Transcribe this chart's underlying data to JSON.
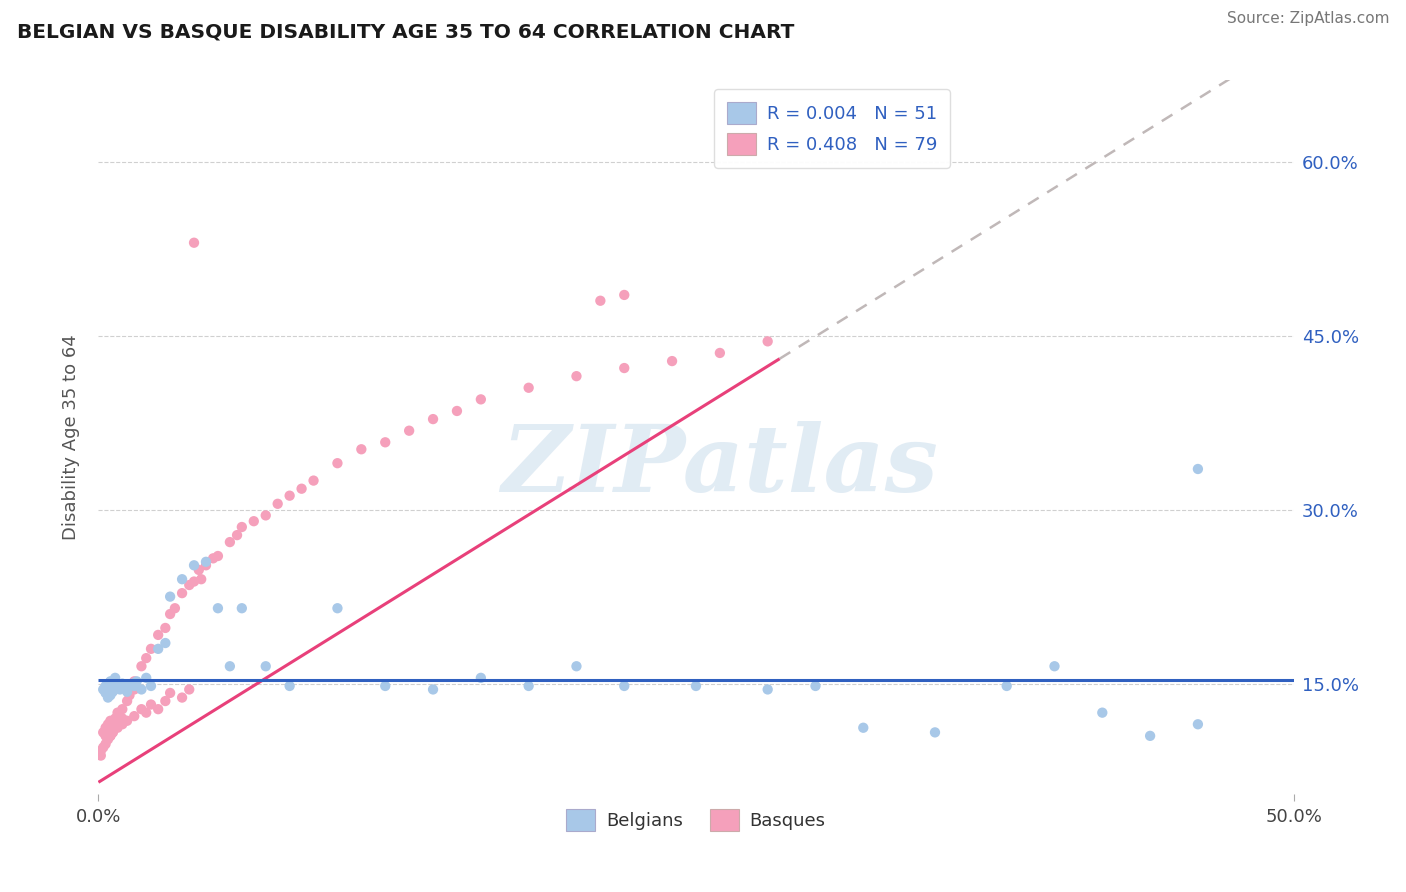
{
  "title": "BELGIAN VS BASQUE DISABILITY AGE 35 TO 64 CORRELATION CHART",
  "source": "Source: ZipAtlas.com",
  "ylabel": "Disability Age 35 to 64",
  "xlim": [
    0.0,
    0.5
  ],
  "ylim": [
    0.055,
    0.67
  ],
  "ytick_vals": [
    0.15,
    0.3,
    0.45,
    0.6
  ],
  "ytick_labels": [
    "15.0%",
    "30.0%",
    "45.0%",
    "60.0%"
  ],
  "xtick_vals": [
    0.0,
    0.5
  ],
  "xtick_labels": [
    "0.0%",
    "50.0%"
  ],
  "legend_R1": "R = 0.004",
  "legend_N1": "N = 51",
  "legend_R2": "R = 0.408",
  "legend_N2": "N = 79",
  "belgian_dot_color": "#a8c8e8",
  "basque_dot_color": "#f5a0bb",
  "trend_belgian_color": "#3060c0",
  "trend_basque_color": "#e8407a",
  "trend_dash_color": "#c0b8b8",
  "watermark_color": "#d5e4f0",
  "background_color": "#ffffff",
  "text_color": "#333333",
  "axis_label_color": "#555555",
  "grid_color": "#d0d0d0",
  "blue_text": "#3060c0",
  "legend_text_color": "#3060c0",
  "bel_x": [
    0.002,
    0.003,
    0.003,
    0.004,
    0.004,
    0.005,
    0.005,
    0.006,
    0.006,
    0.007,
    0.008,
    0.009,
    0.01,
    0.011,
    0.012,
    0.013,
    0.014,
    0.015,
    0.016,
    0.018,
    0.02,
    0.022,
    0.025,
    0.028,
    0.03,
    0.035,
    0.04,
    0.045,
    0.05,
    0.055,
    0.06,
    0.07,
    0.08,
    0.1,
    0.12,
    0.14,
    0.16,
    0.18,
    0.2,
    0.22,
    0.25,
    0.28,
    0.3,
    0.32,
    0.35,
    0.38,
    0.4,
    0.42,
    0.44,
    0.46,
    0.46
  ],
  "bel_y": [
    0.145,
    0.148,
    0.142,
    0.15,
    0.138,
    0.152,
    0.14,
    0.148,
    0.143,
    0.155,
    0.148,
    0.145,
    0.15,
    0.148,
    0.143,
    0.148,
    0.15,
    0.148,
    0.152,
    0.145,
    0.155,
    0.148,
    0.18,
    0.185,
    0.225,
    0.24,
    0.252,
    0.255,
    0.215,
    0.165,
    0.215,
    0.165,
    0.148,
    0.215,
    0.148,
    0.145,
    0.155,
    0.148,
    0.165,
    0.148,
    0.148,
    0.145,
    0.148,
    0.112,
    0.108,
    0.148,
    0.165,
    0.125,
    0.105,
    0.115,
    0.335
  ],
  "bas_x": [
    0.002,
    0.003,
    0.003,
    0.004,
    0.004,
    0.005,
    0.005,
    0.005,
    0.006,
    0.006,
    0.007,
    0.007,
    0.008,
    0.009,
    0.01,
    0.01,
    0.012,
    0.013,
    0.015,
    0.015,
    0.018,
    0.02,
    0.022,
    0.025,
    0.028,
    0.03,
    0.032,
    0.035,
    0.038,
    0.04,
    0.042,
    0.043,
    0.045,
    0.048,
    0.05,
    0.055,
    0.058,
    0.06,
    0.065,
    0.07,
    0.075,
    0.08,
    0.085,
    0.09,
    0.1,
    0.11,
    0.12,
    0.13,
    0.14,
    0.15,
    0.16,
    0.18,
    0.2,
    0.22,
    0.22,
    0.24,
    0.26,
    0.28,
    0.21,
    0.04,
    0.038,
    0.035,
    0.03,
    0.028,
    0.025,
    0.022,
    0.02,
    0.018,
    0.015,
    0.012,
    0.01,
    0.008,
    0.006,
    0.005,
    0.004,
    0.003,
    0.002,
    0.001,
    0.001
  ],
  "bas_y": [
    0.108,
    0.112,
    0.105,
    0.115,
    0.108,
    0.118,
    0.105,
    0.112,
    0.115,
    0.108,
    0.12,
    0.112,
    0.125,
    0.118,
    0.128,
    0.12,
    0.135,
    0.14,
    0.152,
    0.145,
    0.165,
    0.172,
    0.18,
    0.192,
    0.198,
    0.21,
    0.215,
    0.228,
    0.235,
    0.238,
    0.248,
    0.24,
    0.252,
    0.258,
    0.26,
    0.272,
    0.278,
    0.285,
    0.29,
    0.295,
    0.305,
    0.312,
    0.318,
    0.325,
    0.34,
    0.352,
    0.358,
    0.368,
    0.378,
    0.385,
    0.395,
    0.405,
    0.415,
    0.422,
    0.485,
    0.428,
    0.435,
    0.445,
    0.48,
    0.53,
    0.145,
    0.138,
    0.142,
    0.135,
    0.128,
    0.132,
    0.125,
    0.128,
    0.122,
    0.118,
    0.115,
    0.112,
    0.108,
    0.105,
    0.102,
    0.098,
    0.095,
    0.092,
    0.088
  ]
}
